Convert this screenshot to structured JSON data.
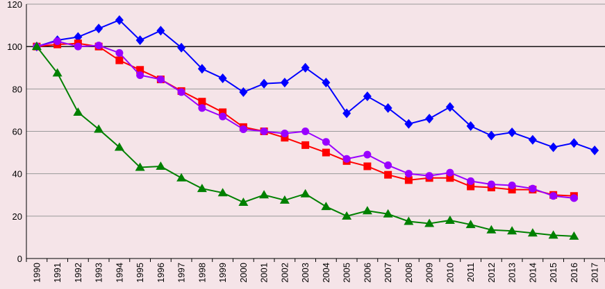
{
  "chart_data": {
    "type": "line",
    "title": "",
    "xlabel": "",
    "ylabel": "",
    "ylim": [
      0,
      120
    ],
    "yticks": [
      0,
      20,
      40,
      60,
      80,
      100,
      120
    ],
    "grid": true,
    "background_color": "#f5e4e8",
    "reference_line": {
      "y": 100,
      "color": "#000000"
    },
    "categories": [
      "1990",
      "1991",
      "1992",
      "1993",
      "1994",
      "1995",
      "1996",
      "1997",
      "1998",
      "1999",
      "2000",
      "2001",
      "2002",
      "2003",
      "2004",
      "2005",
      "2006",
      "2007",
      "2008",
      "2009",
      "2010",
      "2011",
      "2012",
      "2013",
      "2014",
      "2015",
      "2016",
      "2017"
    ],
    "series": [
      {
        "color": "#0000ff",
        "marker": "diamond",
        "values": [
          100,
          103,
          104.5,
          108.5,
          112.5,
          103,
          107.5,
          99.5,
          89.5,
          85,
          78.5,
          82.5,
          83,
          90,
          83,
          68.5,
          76.5,
          71,
          63.5,
          66,
          71.5,
          62.5,
          58,
          59.5,
          56,
          52.5,
          54.5,
          51
        ]
      },
      {
        "color": "#ff0000",
        "marker": "square",
        "values": [
          100,
          101,
          101.5,
          100,
          93.5,
          89,
          84.5,
          79,
          74,
          69,
          62,
          60,
          57,
          53.5,
          50,
          46,
          43.5,
          39.5,
          37,
          38,
          38,
          34,
          33.5,
          32.5,
          32.5,
          30,
          29.5,
          null
        ]
      },
      {
        "color": "#9900ff",
        "marker": "circle",
        "values": [
          100,
          102.5,
          100,
          100.5,
          97,
          86.5,
          84.5,
          78.5,
          71,
          67,
          61,
          60,
          59,
          60,
          55,
          47,
          49,
          44,
          40,
          39,
          40.5,
          36.5,
          35,
          34.5,
          33,
          29.5,
          28.5,
          null
        ]
      },
      {
        "color": "#008000",
        "marker": "triangle",
        "values": [
          100,
          87.5,
          69,
          61,
          52.5,
          43,
          43.5,
          38,
          33,
          31,
          26.5,
          30,
          27.5,
          30.5,
          24.5,
          20,
          22.5,
          21,
          17.5,
          16.5,
          18,
          16,
          13.5,
          13,
          12,
          11,
          10.5,
          null
        ]
      }
    ]
  }
}
